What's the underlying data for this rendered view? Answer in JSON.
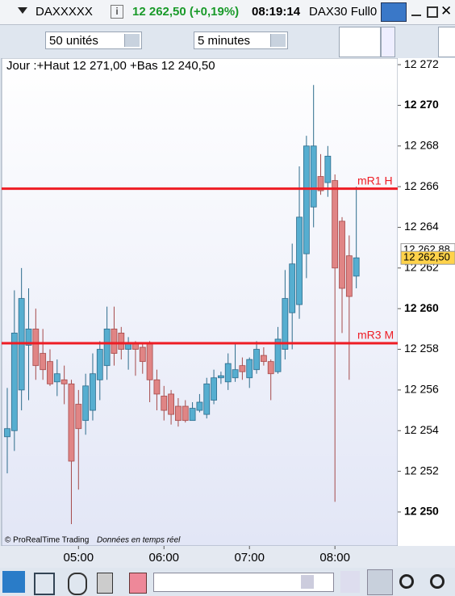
{
  "toolbar": {
    "symbol": "DAXXXXX",
    "price": "12 262,50 (+0,19%)",
    "time": "08:19:14",
    "name": "DAX30 Full0",
    "units": "50 unités",
    "timeframe": "5 minutes"
  },
  "chart_data": {
    "type": "candlestick",
    "info": "Jour :+Haut 12 271,00 +Bas 12 240,50",
    "footer": "© ProRealTime Trading",
    "footer_note": "Données en temps réel",
    "categories": [
      null,
      null,
      null,
      null,
      null,
      null,
      null,
      null,
      null,
      null,
      "05:00",
      null,
      null,
      null,
      null,
      null,
      null,
      null,
      null,
      null,
      null,
      null,
      "06:00",
      null,
      null,
      null,
      null,
      null,
      null,
      null,
      null,
      null,
      null,
      null,
      "07:00",
      null,
      null,
      null,
      null,
      null,
      null,
      null,
      null,
      null,
      null,
      null,
      "08:00",
      null,
      null,
      null
    ],
    "open": [
      12253.7,
      12254.0,
      12256.0,
      12258.2,
      12259.0,
      12257.8,
      12257.4,
      12256.4,
      12256.5,
      12256.3,
      12255.3,
      12254.5,
      12255.0,
      12256.5,
      12257.2,
      12259.0,
      12258.8,
      12258.0,
      12258.3,
      12258.1,
      12258.3,
      12256.5,
      12255.7,
      12255.8,
      12255.2,
      12255.2,
      12254.5,
      12255.0,
      12254.8,
      12255.5,
      12256.6,
      12256.4,
      12256.6,
      12257.2,
      12256.6,
      12257.0,
      12257.7,
      12257.4,
      12256.9,
      12258.0,
      12259.8,
      12260.2,
      12262.7,
      12265.0,
      12266.5,
      12266.2,
      12266.3,
      12264.3,
      12262.6,
      12261.6
    ],
    "high": [
      12256.1,
      12260.9,
      12262.0,
      12261.0,
      12260.0,
      12259.0,
      12258.0,
      12257.5,
      12257.2,
      12256.5,
      12256.0,
      12256.8,
      12257.8,
      12258.4,
      12260.1,
      12260.1,
      12259.1,
      12258.6,
      12258.4,
      12258.3,
      12258.4,
      12257.0,
      12256.2,
      12256.0,
      12255.6,
      12255.5,
      12255.4,
      12255.8,
      12256.6,
      12257.0,
      12256.9,
      12257.8,
      12258.3,
      12257.6,
      12257.6,
      12258.4,
      12258.1,
      12257.5,
      12259.1,
      12261.9,
      12263.2,
      12267.0,
      12268.5,
      12271.0,
      12267.6,
      12268.0,
      12266.6,
      12264.5,
      12263.6,
      12266.0
    ],
    "low": [
      12251.9,
      12253.0,
      12255.0,
      12255.5,
      12256.5,
      12256.5,
      12256.2,
      12255.7,
      12255.3,
      12249.4,
      12251.1,
      12253.8,
      12254.5,
      12255.5,
      12256.5,
      12257.2,
      12257.5,
      12257.0,
      12256.7,
      12256.8,
      12255.4,
      12255.0,
      12254.5,
      12254.3,
      12254.2,
      12254.4,
      12254.5,
      12254.9,
      12254.6,
      12255.3,
      12256.3,
      12256.0,
      12256.4,
      12256.5,
      12256.1,
      12256.8,
      12257.2,
      12255.5,
      12256.8,
      12257.5,
      12258.0,
      12259.5,
      12261.5,
      12264.0,
      12265.6,
      12265.5,
      12250.5,
      12258.8,
      12256.5,
      12261.0
    ],
    "close": [
      12254.1,
      12258.8,
      12260.5,
      12259.0,
      12257.2,
      12257.0,
      12256.3,
      12256.8,
      12256.3,
      12252.5,
      12254.1,
      12256.2,
      12256.8,
      12258.0,
      12259.0,
      12257.8,
      12258.0,
      12258.3,
      12258.0,
      12257.4,
      12256.5,
      12255.8,
      12255.0,
      12254.8,
      12254.5,
      12254.5,
      12255.1,
      12255.4,
      12256.3,
      12256.6,
      12256.7,
      12257.3,
      12257.0,
      12256.9,
      12257.5,
      12258.0,
      12257.4,
      12256.8,
      12258.5,
      12260.5,
      12262.2,
      12264.5,
      12268.0,
      12268.0,
      12265.8,
      12267.5,
      12262.0,
      12261.0,
      12260.6,
      12262.5
    ],
    "up_color": "#56aed0",
    "down_color": "#e08585",
    "ylim": [
      12248.33,
      12272.32
    ],
    "yticks": [
      {
        "value": 12250,
        "label": "12 250"
      },
      {
        "value": 12252,
        "label": "12 252"
      },
      {
        "value": 12254,
        "label": "12 254"
      },
      {
        "value": 12256,
        "label": "12 256"
      },
      {
        "value": 12258,
        "label": "12 258"
      },
      {
        "value": 12260,
        "label": "12 260"
      },
      {
        "value": 12262,
        "label": "12 262"
      },
      {
        "value": 12264,
        "label": "12 264"
      },
      {
        "value": 12266,
        "label": "12 266"
      },
      {
        "value": 12268,
        "label": "12 268"
      },
      {
        "value": 12270,
        "label": "12 270"
      },
      {
        "value": 12272,
        "label": "12 272"
      }
    ],
    "levels": [
      {
        "label": "mR1 H",
        "value": 12265.9,
        "color": "#ee1c24"
      },
      {
        "label": "mR3 M",
        "value": 12258.3,
        "color": "#ee1c24"
      }
    ],
    "price_markers": [
      {
        "value": 12262.88,
        "label": "12 262,88",
        "color": "#ffffff"
      },
      {
        "value": 12262.5,
        "label": "12 262,50",
        "color": "#ffd24a"
      }
    ]
  }
}
